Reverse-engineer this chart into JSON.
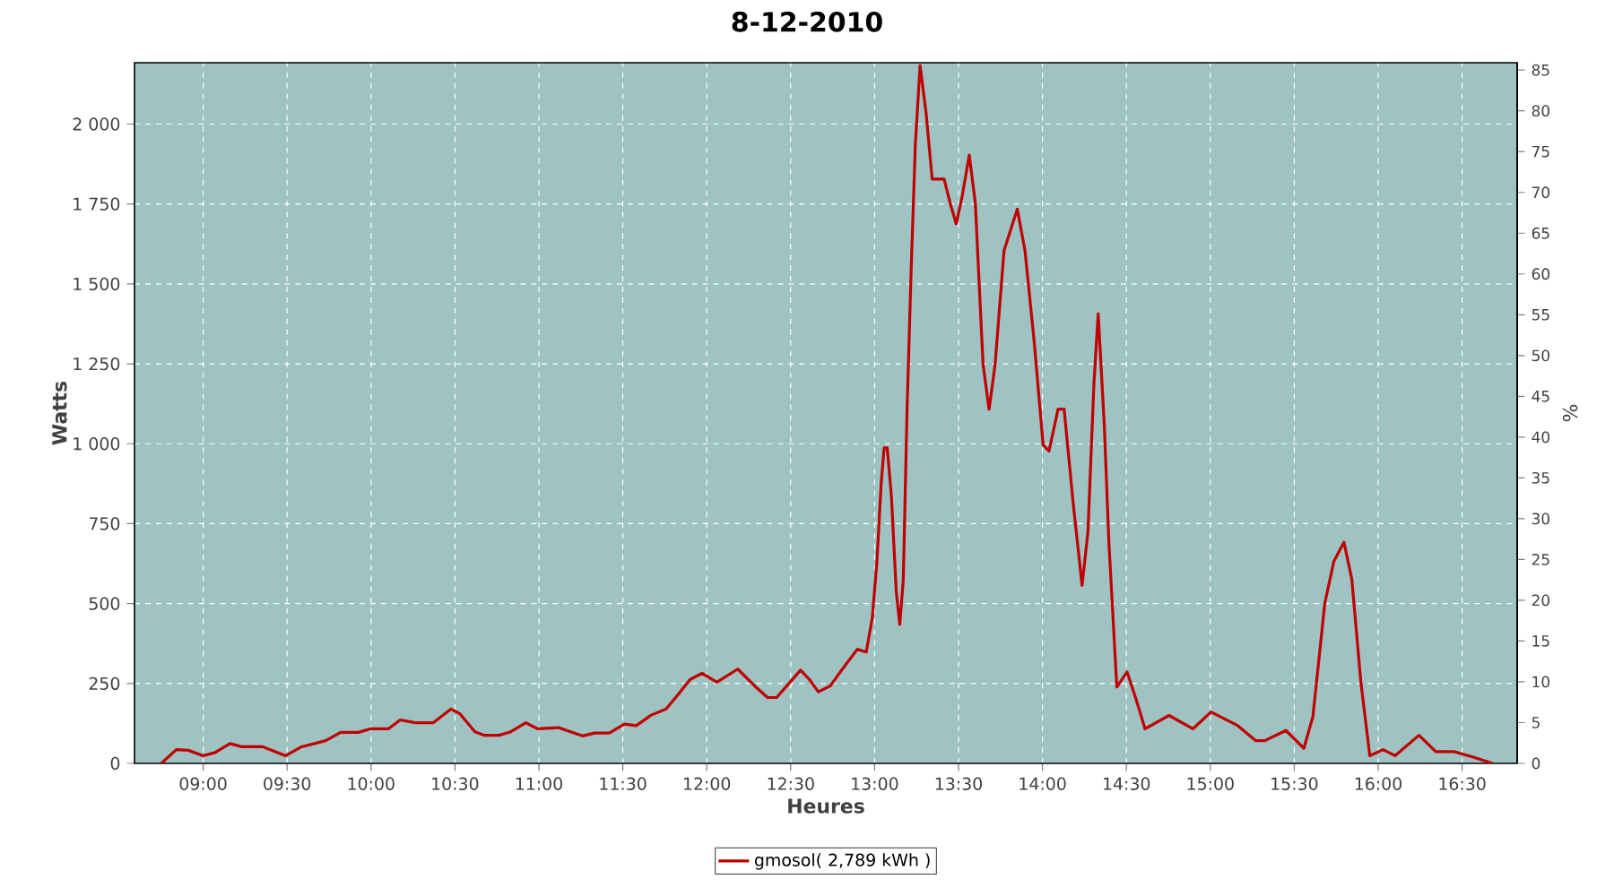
{
  "chart_data": {
    "type": "line",
    "title": "8-12-2010",
    "xlabel": "Heures",
    "ylabel": "Watts",
    "y2label": "%",
    "x": [
      8.751,
      8.84,
      8.911,
      9.0,
      9.071,
      9.16,
      9.231,
      9.356,
      9.491,
      9.587,
      9.73,
      9.819,
      9.925,
      9.996,
      10.103,
      10.174,
      10.263,
      10.37,
      10.477,
      10.53,
      10.619,
      10.673,
      10.762,
      10.833,
      10.922,
      10.993,
      11.117,
      11.189,
      11.26,
      11.331,
      11.42,
      11.509,
      11.58,
      11.669,
      11.758,
      11.829,
      11.9,
      11.972,
      12.06,
      12.185,
      12.292,
      12.363,
      12.416,
      12.488,
      12.559,
      12.612,
      12.665,
      12.737,
      12.808,
      12.897,
      12.95,
      12.986,
      13.014,
      13.039,
      13.057,
      13.075,
      13.1,
      13.129,
      13.15,
      13.171,
      13.193,
      13.218,
      13.243,
      13.271,
      13.307,
      13.343,
      13.414,
      13.45,
      13.486,
      13.521,
      13.564,
      13.6,
      13.646,
      13.682,
      13.718,
      13.771,
      13.85,
      13.896,
      13.95,
      14.004,
      14.039,
      14.093,
      14.129,
      14.182,
      14.236,
      14.271,
      14.307,
      14.332,
      14.368,
      14.396,
      14.443,
      14.504,
      14.557,
      14.611,
      14.754,
      14.896,
      15.004,
      15.164,
      15.271,
      15.325,
      15.45,
      15.557,
      15.611,
      15.682,
      15.736,
      15.796,
      15.843,
      15.896,
      15.95,
      16.029,
      16.1,
      16.243,
      16.343,
      16.45,
      16.557,
      16.682
    ],
    "series": [
      {
        "name": "gmosol( 2,789 kWh )",
        "color": "#c00000",
        "values": [
          0,
          43,
          41,
          24,
          34,
          62,
          52,
          52,
          24,
          52,
          71,
          97,
          97,
          108,
          108,
          136,
          127,
          127,
          170,
          155,
          99,
          88,
          88,
          99,
          127,
          108,
          112,
          99,
          86,
          95,
          95,
          123,
          118,
          151,
          170,
          215,
          262,
          282,
          254,
          295,
          239,
          206,
          206,
          249,
          292,
          262,
          224,
          243,
          295,
          357,
          348,
          454,
          632,
          875,
          987,
          987,
          837,
          538,
          435,
          576,
          1099,
          1548,
          1940,
          2183,
          2033,
          1828,
          1828,
          1753,
          1688,
          1772,
          1903,
          1753,
          1249,
          1108,
          1249,
          1604,
          1734,
          1604,
          1323,
          996,
          977,
          1108,
          1108,
          819,
          557,
          725,
          1192,
          1407,
          1062,
          688,
          239,
          286,
          202,
          108,
          150,
          108,
          161,
          118,
          71,
          71,
          103,
          47,
          146,
          501,
          632,
          692,
          576,
          258,
          24,
          43,
          24,
          88,
          37,
          37,
          21,
          0
        ]
      }
    ],
    "xlim": [
      8.591,
      16.828
    ],
    "xticks": [
      {
        "value": 9,
        "label": "09:00"
      },
      {
        "value": 9.5,
        "label": "09:30"
      },
      {
        "value": 10,
        "label": "10:00"
      },
      {
        "value": 10.5,
        "label": "10:30"
      },
      {
        "value": 11,
        "label": "11:00"
      },
      {
        "value": 11.5,
        "label": "11:30"
      },
      {
        "value": 12,
        "label": "12:00"
      },
      {
        "value": 12.5,
        "label": "12:30"
      },
      {
        "value": 13,
        "label": "13:00"
      },
      {
        "value": 13.5,
        "label": "13:30"
      },
      {
        "value": 14,
        "label": "14:00"
      },
      {
        "value": 14.5,
        "label": "14:30"
      },
      {
        "value": 15,
        "label": "15:00"
      },
      {
        "value": 15.5,
        "label": "15:30"
      },
      {
        "value": 16,
        "label": "16:00"
      },
      {
        "value": 16.5,
        "label": "16:30"
      }
    ],
    "ylim": [
      0,
      2192
    ],
    "yticks": [
      0,
      250,
      500,
      750,
      {
        "value": 1000,
        "label": "1 000"
      },
      {
        "value": 1250,
        "label": "1 250"
      },
      {
        "value": 1500,
        "label": "1 500"
      },
      {
        "value": 1750,
        "label": "1 750"
      },
      {
        "value": 2000,
        "label": "2 000"
      }
    ],
    "y2lim": [
      0,
      85.9
    ],
    "y2ticks": [
      0,
      5,
      10,
      15,
      20,
      25,
      30,
      35,
      40,
      45,
      50,
      55,
      60,
      65,
      70,
      75,
      80,
      85
    ],
    "grid": true,
    "legend": "bottom",
    "marker": "none",
    "line_style": "solid"
  }
}
